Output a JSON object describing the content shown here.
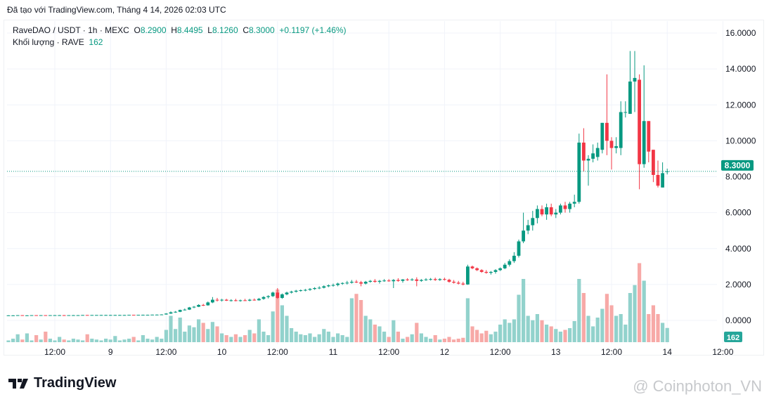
{
  "header": {
    "created": "Đã tạo với TradingView.com, Tháng 4 14, 2026 02:03 UTC"
  },
  "legend": {
    "symbol": "RaveDAO / USDT · 1h · MEXC",
    "o_label": "O",
    "open": "8.2900",
    "h_label": "H",
    "high": "8.4495",
    "l_label": "L",
    "low": "8.1260",
    "c_label": "C",
    "close": "8.3000",
    "change": "+0.1197 (+1.46%)",
    "volume_label": "Khối lượng · RAVE",
    "volume": "162"
  },
  "colors": {
    "up": "#089981",
    "down": "#f23645",
    "vol_up": "#92d2cc",
    "vol_down": "#f7a9a7"
  },
  "footer": {
    "brand": "TradingView",
    "watermark": "@ Coinphoton_VN"
  },
  "chart_data": {
    "type": "candlestick",
    "price_axis": {
      "ticks": [
        "16.0000",
        "14.0000",
        "12.0000",
        "10.0000",
        "8.0000",
        "6.0000",
        "4.0000",
        "2.0000",
        "0.0000"
      ],
      "range": [
        0,
        16
      ],
      "last_price_label": "8.3000",
      "volume_label": "162"
    },
    "time_axis": {
      "ticks": [
        "12:00",
        "9",
        "12:00",
        "10",
        "12:00",
        "11",
        "12:00",
        "12",
        "12:00",
        "13",
        "12:00",
        "14",
        "12:00"
      ]
    },
    "candles": [
      [
        0.28,
        0.29,
        0.27,
        0.28,
        20
      ],
      [
        0.28,
        0.29,
        0.27,
        0.28,
        40
      ],
      [
        0.28,
        0.29,
        0.27,
        0.29,
        90
      ],
      [
        0.29,
        0.29,
        0.28,
        0.28,
        30
      ],
      [
        0.28,
        0.29,
        0.27,
        0.28,
        100
      ],
      [
        0.28,
        0.29,
        0.28,
        0.29,
        20
      ],
      [
        0.29,
        0.29,
        0.28,
        0.28,
        80
      ],
      [
        0.28,
        0.29,
        0.28,
        0.29,
        30
      ],
      [
        0.29,
        0.29,
        0.28,
        0.28,
        120
      ],
      [
        0.28,
        0.29,
        0.28,
        0.29,
        40
      ],
      [
        0.29,
        0.3,
        0.28,
        0.29,
        20
      ],
      [
        0.29,
        0.3,
        0.28,
        0.29,
        60
      ],
      [
        0.29,
        0.3,
        0.28,
        0.28,
        30
      ],
      [
        0.28,
        0.29,
        0.28,
        0.29,
        20
      ],
      [
        0.29,
        0.3,
        0.28,
        0.29,
        40
      ],
      [
        0.29,
        0.3,
        0.28,
        0.29,
        30
      ],
      [
        0.29,
        0.3,
        0.29,
        0.3,
        20
      ],
      [
        0.3,
        0.3,
        0.29,
        0.29,
        90
      ],
      [
        0.29,
        0.3,
        0.29,
        0.3,
        40
      ],
      [
        0.3,
        0.3,
        0.29,
        0.3,
        30
      ],
      [
        0.3,
        0.31,
        0.29,
        0.3,
        20
      ],
      [
        0.3,
        0.31,
        0.29,
        0.3,
        40
      ],
      [
        0.3,
        0.31,
        0.29,
        0.3,
        30
      ],
      [
        0.3,
        0.31,
        0.29,
        0.3,
        70
      ],
      [
        0.3,
        0.31,
        0.29,
        0.3,
        20
      ],
      [
        0.3,
        0.31,
        0.29,
        0.3,
        30
      ],
      [
        0.3,
        0.31,
        0.3,
        0.31,
        40
      ],
      [
        0.31,
        0.31,
        0.3,
        0.3,
        60
      ],
      [
        0.3,
        0.31,
        0.3,
        0.31,
        20
      ],
      [
        0.31,
        0.32,
        0.3,
        0.31,
        80
      ],
      [
        0.31,
        0.32,
        0.3,
        0.31,
        40
      ],
      [
        0.31,
        0.32,
        0.3,
        0.32,
        30
      ],
      [
        0.32,
        0.33,
        0.31,
        0.32,
        60
      ],
      [
        0.32,
        0.34,
        0.31,
        0.33,
        40
      ],
      [
        0.33,
        0.4,
        0.32,
        0.38,
        140
      ],
      [
        0.38,
        0.5,
        0.36,
        0.45,
        300
      ],
      [
        0.45,
        0.52,
        0.42,
        0.48,
        150
      ],
      [
        0.48,
        0.6,
        0.46,
        0.58,
        280
      ],
      [
        0.58,
        0.66,
        0.55,
        0.6,
        120
      ],
      [
        0.6,
        0.75,
        0.58,
        0.72,
        190
      ],
      [
        0.72,
        0.8,
        0.68,
        0.76,
        170
      ],
      [
        0.76,
        0.9,
        0.74,
        0.86,
        260
      ],
      [
        0.86,
        0.92,
        0.8,
        0.84,
        220
      ],
      [
        0.84,
        1.05,
        0.82,
        1.0,
        150
      ],
      [
        1.0,
        1.3,
        0.96,
        1.15,
        230
      ],
      [
        1.15,
        1.25,
        1.05,
        1.12,
        180
      ],
      [
        1.12,
        1.2,
        1.05,
        1.15,
        100
      ],
      [
        1.15,
        1.2,
        1.08,
        1.1,
        80
      ],
      [
        1.1,
        1.18,
        1.05,
        1.12,
        60
      ],
      [
        1.12,
        1.2,
        1.06,
        1.08,
        90
      ],
      [
        1.08,
        1.16,
        1.04,
        1.12,
        60
      ],
      [
        1.12,
        1.2,
        1.08,
        1.1,
        80
      ],
      [
        1.1,
        1.2,
        1.06,
        1.15,
        140
      ],
      [
        1.15,
        1.22,
        1.1,
        1.12,
        100
      ],
      [
        1.12,
        1.25,
        1.1,
        1.2,
        260
      ],
      [
        1.2,
        1.35,
        1.15,
        1.3,
        120
      ],
      [
        1.3,
        1.4,
        1.22,
        1.35,
        80
      ],
      [
        1.35,
        1.6,
        1.3,
        1.55,
        350
      ],
      [
        1.55,
        1.8,
        1.2,
        1.25,
        600
      ],
      [
        1.25,
        1.5,
        1.2,
        1.45,
        420
      ],
      [
        1.45,
        1.6,
        1.4,
        1.55,
        300
      ],
      [
        1.55,
        1.65,
        1.5,
        1.6,
        160
      ],
      [
        1.6,
        1.7,
        1.55,
        1.65,
        120
      ],
      [
        1.65,
        1.72,
        1.6,
        1.68,
        90
      ],
      [
        1.68,
        1.75,
        1.62,
        1.7,
        80
      ],
      [
        1.7,
        1.8,
        1.65,
        1.75,
        100
      ],
      [
        1.75,
        1.85,
        1.7,
        1.8,
        60
      ],
      [
        1.8,
        1.9,
        1.74,
        1.82,
        90
      ],
      [
        1.82,
        1.95,
        1.78,
        1.9,
        150
      ],
      [
        1.9,
        2.0,
        1.85,
        1.95,
        120
      ],
      [
        1.95,
        2.05,
        1.88,
        1.97,
        60
      ],
      [
        1.97,
        2.1,
        1.9,
        2.05,
        100
      ],
      [
        2.05,
        2.12,
        1.98,
        2.08,
        80
      ],
      [
        2.08,
        2.2,
        2.0,
        2.1,
        60
      ],
      [
        2.1,
        2.25,
        2.05,
        2.15,
        500
      ],
      [
        2.15,
        2.25,
        2.08,
        2.12,
        550
      ],
      [
        2.12,
        2.2,
        1.9,
        2.05,
        480
      ],
      [
        2.05,
        2.2,
        2.0,
        2.15,
        300
      ],
      [
        2.15,
        2.25,
        2.1,
        2.2,
        260
      ],
      [
        2.2,
        2.3,
        2.1,
        2.15,
        200
      ],
      [
        2.15,
        2.25,
        2.05,
        2.2,
        180
      ],
      [
        2.2,
        2.3,
        2.15,
        2.22,
        120
      ],
      [
        2.22,
        2.3,
        2.15,
        2.18,
        60
      ],
      [
        2.18,
        2.3,
        1.8,
        2.25,
        250
      ],
      [
        2.25,
        2.35,
        2.15,
        2.2,
        120
      ],
      [
        2.2,
        2.3,
        2.1,
        2.28,
        40
      ],
      [
        2.28,
        2.35,
        2.2,
        2.25,
        60
      ],
      [
        2.25,
        2.35,
        2.2,
        2.28,
        90
      ],
      [
        2.28,
        2.4,
        1.9,
        2.2,
        220
      ],
      [
        2.2,
        2.3,
        2.15,
        2.25,
        100
      ],
      [
        2.25,
        2.35,
        2.2,
        2.28,
        60
      ],
      [
        2.28,
        2.36,
        2.22,
        2.3,
        40
      ],
      [
        2.3,
        2.38,
        2.2,
        2.25,
        80
      ],
      [
        2.25,
        2.35,
        2.2,
        2.3,
        30
      ],
      [
        2.3,
        2.38,
        2.22,
        2.26,
        40
      ],
      [
        2.26,
        2.32,
        2.1,
        2.15,
        60
      ],
      [
        2.15,
        2.25,
        2.05,
        2.1,
        30
      ],
      [
        2.1,
        2.2,
        2.0,
        2.05,
        40
      ],
      [
        2.05,
        2.15,
        1.95,
        2.0,
        50
      ],
      [
        2.0,
        3.1,
        1.98,
        3.0,
        500
      ],
      [
        3.0,
        3.05,
        2.85,
        2.9,
        180
      ],
      [
        2.9,
        2.95,
        2.75,
        2.8,
        140
      ],
      [
        2.8,
        2.85,
        2.65,
        2.7,
        100
      ],
      [
        2.7,
        2.8,
        2.6,
        2.65,
        130
      ],
      [
        2.65,
        2.75,
        2.55,
        2.7,
        90
      ],
      [
        2.7,
        2.85,
        2.6,
        2.8,
        120
      ],
      [
        2.8,
        2.95,
        2.75,
        2.9,
        200
      ],
      [
        2.9,
        3.2,
        2.85,
        3.1,
        260
      ],
      [
        3.1,
        3.4,
        3.0,
        3.3,
        220
      ],
      [
        3.3,
        3.8,
        3.2,
        3.6,
        260
      ],
      [
        3.6,
        4.5,
        3.5,
        4.4,
        540
      ],
      [
        4.4,
        6.0,
        4.3,
        5.0,
        720
      ],
      [
        5.0,
        5.6,
        4.8,
        5.3,
        300
      ],
      [
        5.3,
        6.1,
        5.0,
        5.7,
        250
      ],
      [
        5.7,
        6.4,
        5.4,
        6.2,
        320
      ],
      [
        6.2,
        6.4,
        5.8,
        5.9,
        250
      ],
      [
        5.9,
        6.5,
        5.6,
        6.3,
        200
      ],
      [
        6.3,
        6.5,
        5.8,
        5.9,
        180
      ],
      [
        5.9,
        6.2,
        5.7,
        6.0,
        150
      ],
      [
        6.0,
        6.5,
        5.9,
        6.4,
        120
      ],
      [
        6.4,
        6.6,
        6.0,
        6.2,
        140
      ],
      [
        6.2,
        6.6,
        6.0,
        6.5,
        160
      ],
      [
        6.5,
        7.0,
        6.3,
        6.6,
        240
      ],
      [
        6.6,
        10.4,
        6.5,
        9.9,
        720
      ],
      [
        9.9,
        10.7,
        8.3,
        8.9,
        560
      ],
      [
        8.9,
        9.2,
        7.5,
        9.0,
        300
      ],
      [
        9.0,
        9.8,
        8.8,
        9.3,
        180
      ],
      [
        9.1,
        9.9,
        8.9,
        9.6,
        280
      ],
      [
        9.5,
        11.0,
        9.3,
        11.0,
        380
      ],
      [
        11.0,
        13.7,
        9.2,
        10.0,
        550
      ],
      [
        10.0,
        10.2,
        8.4,
        9.6,
        420
      ],
      [
        9.6,
        10.2,
        9.3,
        9.7,
        300
      ],
      [
        9.6,
        12.2,
        9.2,
        11.6,
        320
      ],
      [
        11.6,
        12.2,
        11.3,
        11.6,
        200
      ],
      [
        11.5,
        15.0,
        11.5,
        13.3,
        560
      ],
      [
        13.3,
        15.0,
        11.6,
        13.5,
        650
      ],
      [
        13.4,
        13.7,
        7.3,
        8.7,
        900
      ],
      [
        8.7,
        14.2,
        8.5,
        11.1,
        700
      ],
      [
        11.1,
        11.1,
        8.8,
        9.4,
        320
      ],
      [
        9.5,
        9.5,
        7.7,
        8.1,
        420
      ],
      [
        8.1,
        8.9,
        7.4,
        7.5,
        320
      ],
      [
        7.4,
        8.8,
        7.4,
        8.2,
        220
      ],
      [
        8.29,
        8.45,
        8.13,
        8.3,
        162
      ]
    ]
  }
}
